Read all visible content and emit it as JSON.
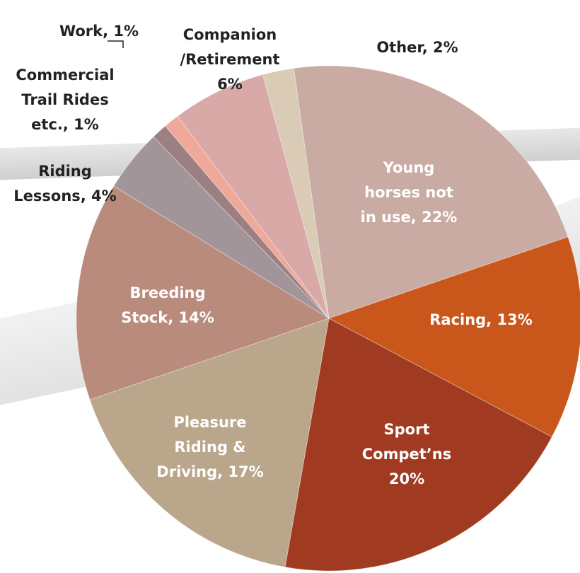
{
  "chart_data": {
    "type": "pie",
    "categories": [
      "Other",
      "Young horses not in use",
      "Racing",
      "Sport Compet'ns",
      "Pleasure Riding & Driving",
      "Breeding Stock",
      "Riding Lessons",
      "Commercial Trail Rides etc.",
      "Work",
      "Companion /Retirement"
    ],
    "labels": [
      [
        "Other, 2%"
      ],
      [
        "Young",
        "horses not",
        "in use, 22%"
      ],
      [
        "Racing, 13%"
      ],
      [
        "Sport",
        "Compet’ns",
        "20%"
      ],
      [
        "Pleasure",
        "Riding &",
        "Driving, 17%"
      ],
      [
        "Breeding",
        "Stock, 14%"
      ],
      [
        "Riding",
        "Lessons, 4%"
      ],
      [
        "Commercial",
        "Trail Rides",
        "etc., 1%"
      ],
      [
        "Work, 1%"
      ],
      [
        "Companion",
        "/Retirement",
        "6%"
      ]
    ],
    "values": [
      2,
      22,
      13,
      20,
      17,
      14,
      4,
      1,
      1,
      6
    ],
    "colors": [
      "#d9cbb6",
      "#c9aba3",
      "#c9561b",
      "#a03b22",
      "#baa68a",
      "#b98b7d",
      "#a19599",
      "#9b7f82",
      "#f0a89b",
      "#d9a9a7"
    ]
  }
}
